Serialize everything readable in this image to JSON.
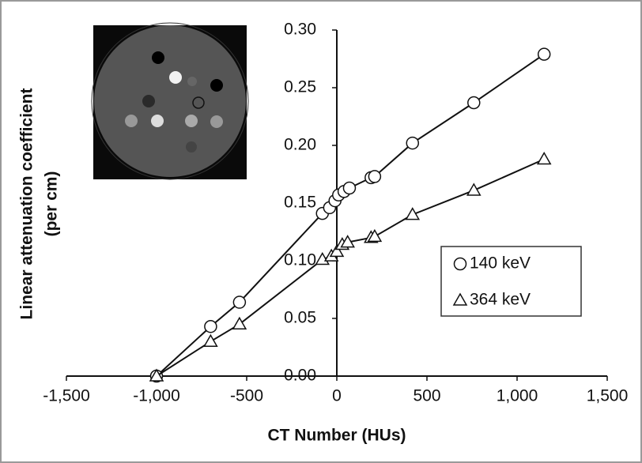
{
  "chart_data": {
    "type": "scatter",
    "x_label": "CT Number (HUs)",
    "y_label": [
      "Linear attenuation coefficient",
      "(per cm)"
    ],
    "xlim": [
      -1500,
      1500
    ],
    "xticks": [
      {
        "value": -1500,
        "label": "-1,500"
      },
      {
        "value": -1000,
        "label": "-1,000"
      },
      -500,
      0,
      500,
      {
        "value": 1000,
        "label": "1,000"
      },
      {
        "value": 1500,
        "label": "1,500"
      }
    ],
    "ylim": [
      0,
      0.3
    ],
    "yticks": [
      {
        "value": 0,
        "label": "0.00"
      },
      0.05,
      {
        "value": 0.1,
        "label": "0.10"
      },
      0.15,
      {
        "value": 0.2,
        "label": "0.20"
      },
      0.25,
      {
        "value": 0.3,
        "label": "0.30"
      }
    ],
    "series": [
      {
        "name": "140 keV",
        "marker": "circle",
        "color": "#111111",
        "x": [
          -1000,
          -700,
          -540,
          -80,
          -40,
          -10,
          10,
          40,
          70,
          190,
          210,
          420,
          760,
          1150
        ],
        "values": [
          0,
          0.043,
          0.064,
          0.141,
          0.146,
          0.152,
          0.157,
          0.16,
          0.163,
          0.172,
          0.173,
          0.202,
          0.237,
          0.279
        ]
      },
      {
        "name": "364 keV",
        "marker": "triangle",
        "color": "#111111",
        "x": [
          -1000,
          -700,
          -540,
          -80,
          -30,
          0,
          30,
          60,
          190,
          210,
          420,
          760,
          1150
        ],
        "values": [
          0,
          0.03,
          0.045,
          0.101,
          0.104,
          0.108,
          0.114,
          0.116,
          0.12,
          0.121,
          0.14,
          0.161,
          0.188
        ]
      }
    ]
  }
}
